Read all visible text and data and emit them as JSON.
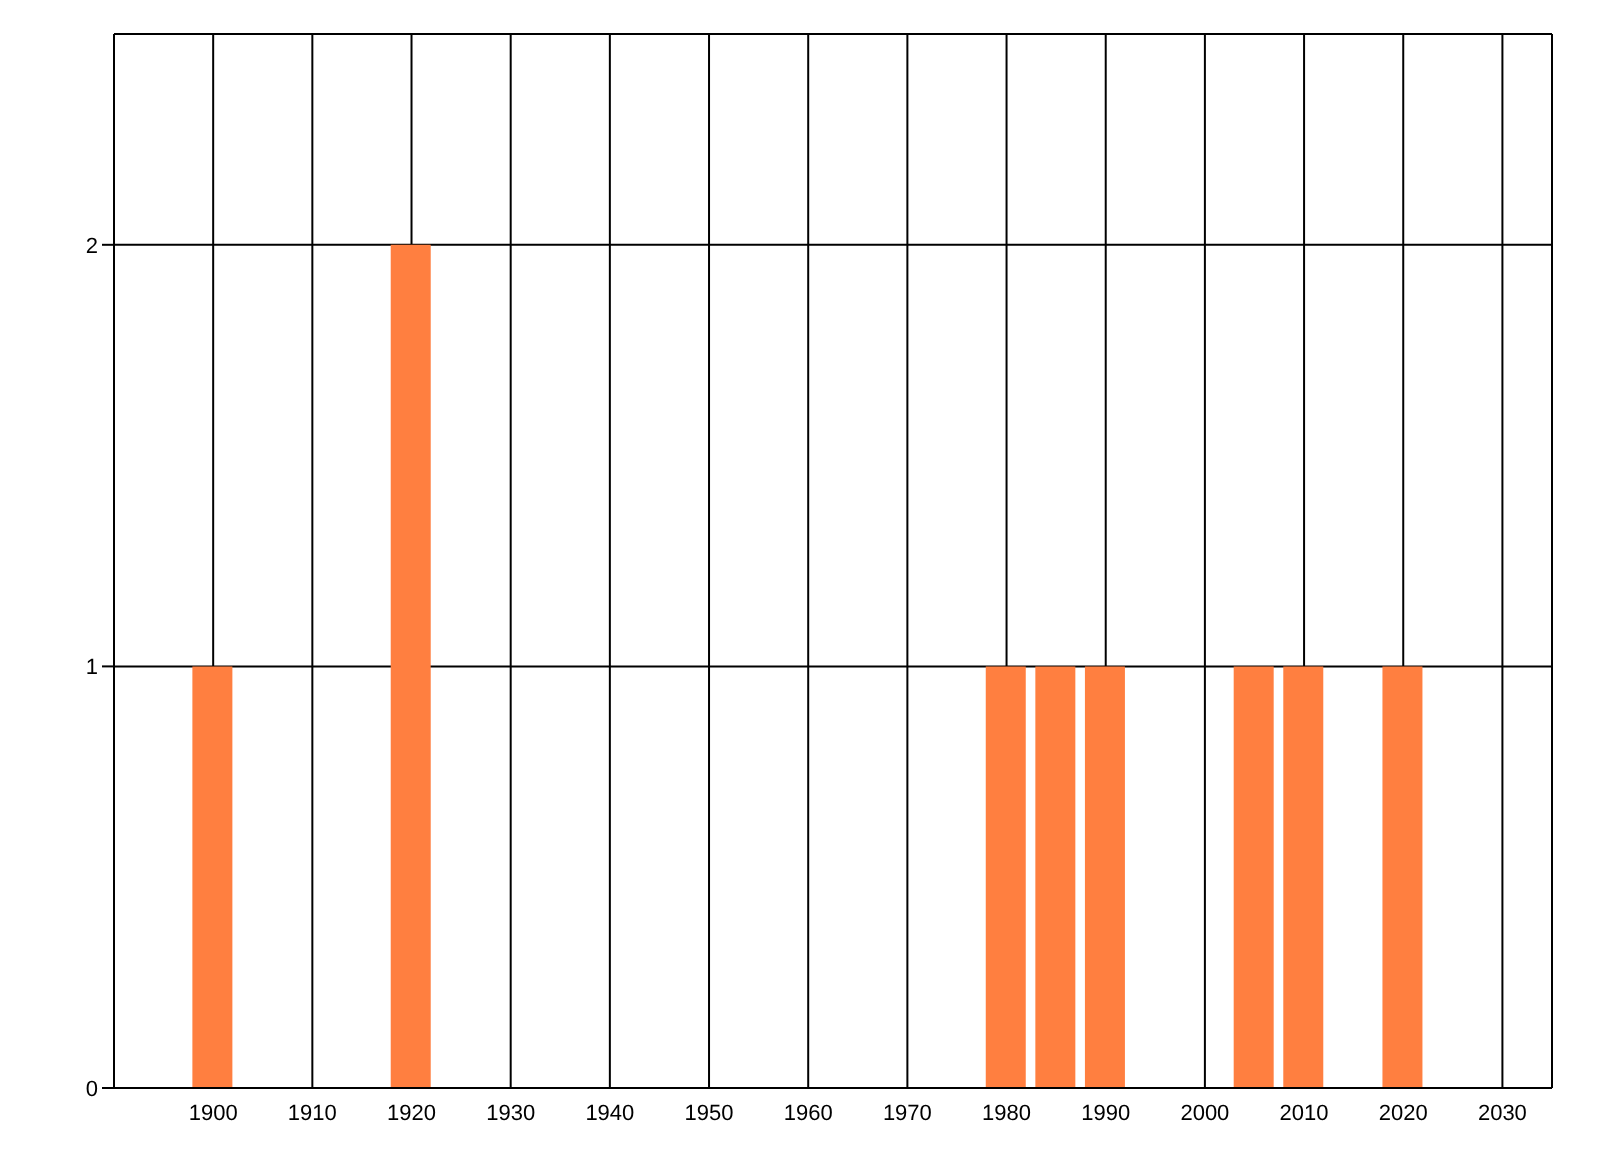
{
  "chart_data": {
    "type": "bar",
    "x": [
      1900,
      1920,
      1980,
      1985,
      1990,
      2005,
      2010,
      2020
    ],
    "values": [
      1,
      2,
      1,
      1,
      1,
      1,
      1,
      1
    ],
    "color": "#ff7f40",
    "xlim": [
      1890,
      2035
    ],
    "xticks": [
      1900,
      1910,
      1920,
      1930,
      1940,
      1950,
      1960,
      1970,
      1980,
      1990,
      2000,
      2010,
      2020,
      2030
    ],
    "ylim": [
      0,
      2.5
    ],
    "yticks": [
      0,
      1,
      2
    ],
    "grid": true
  }
}
